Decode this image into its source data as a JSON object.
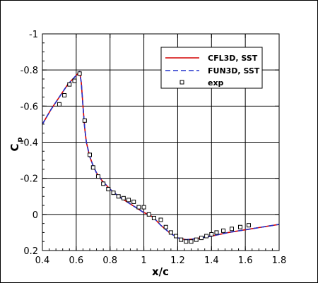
{
  "chart_data": {
    "type": "line",
    "xlabel": "x/c",
    "ylabel_main": "C",
    "ylabel_sub": "p",
    "xlim": [
      0.4,
      1.8
    ],
    "ylim": [
      0.2,
      -1
    ],
    "x_ticks": [
      "0.4",
      "0.6",
      "0.8",
      "1",
      "1.2",
      "1.4",
      "1.6",
      "1.8"
    ],
    "y_ticks": [
      "0.2",
      "0",
      "-0.2",
      "-0.4",
      "-0.6",
      "-0.8",
      "-1"
    ],
    "grid": true,
    "legend_position": "top-right",
    "series": [
      {
        "name": "CFL3D, SST",
        "style": "line",
        "color": "#d40000",
        "x": [
          0.4,
          0.45,
          0.5,
          0.55,
          0.6,
          0.62,
          0.63,
          0.64,
          0.65,
          0.66,
          0.68,
          0.7,
          0.72,
          0.75,
          0.8,
          0.85,
          0.9,
          0.95,
          1.0,
          1.03,
          1.06,
          1.1,
          1.15,
          1.2,
          1.25,
          1.3,
          1.4,
          1.5,
          1.6,
          1.7,
          1.8
        ],
        "y": [
          -0.5,
          -0.58,
          -0.65,
          -0.72,
          -0.77,
          -0.79,
          -0.73,
          -0.6,
          -0.48,
          -0.4,
          -0.32,
          -0.27,
          -0.23,
          -0.19,
          -0.14,
          -0.1,
          -0.07,
          -0.04,
          -0.01,
          0.0,
          0.02,
          0.06,
          0.1,
          0.13,
          0.14,
          0.135,
          0.12,
          0.1,
          0.085,
          0.07,
          0.055
        ]
      },
      {
        "name": "FUN3D, SST",
        "style": "dashed",
        "color": "#2233cc",
        "x": [
          0.4,
          0.45,
          0.5,
          0.55,
          0.6,
          0.62,
          0.63,
          0.64,
          0.65,
          0.66,
          0.68,
          0.7,
          0.72,
          0.75,
          0.8,
          0.85,
          0.9,
          0.95,
          1.0,
          1.03,
          1.06,
          1.1,
          1.15,
          1.2,
          1.25,
          1.3,
          1.4,
          1.5,
          1.6,
          1.7,
          1.8
        ],
        "y": [
          -0.5,
          -0.58,
          -0.65,
          -0.72,
          -0.77,
          -0.79,
          -0.73,
          -0.6,
          -0.48,
          -0.4,
          -0.32,
          -0.27,
          -0.23,
          -0.19,
          -0.14,
          -0.1,
          -0.07,
          -0.04,
          -0.01,
          0.0,
          0.02,
          0.06,
          0.1,
          0.13,
          0.14,
          0.135,
          0.12,
          0.1,
          0.085,
          0.07,
          0.055
        ]
      },
      {
        "name": "exp",
        "style": "marker",
        "color": "#000000",
        "x": [
          0.5,
          0.53,
          0.56,
          0.59,
          0.62,
          0.65,
          0.68,
          0.7,
          0.73,
          0.76,
          0.79,
          0.82,
          0.85,
          0.88,
          0.91,
          0.94,
          0.97,
          1.0,
          1.03,
          1.06,
          1.1,
          1.13,
          1.16,
          1.19,
          1.22,
          1.25,
          1.28,
          1.31,
          1.34,
          1.37,
          1.4,
          1.43,
          1.47,
          1.52,
          1.57,
          1.62
        ],
        "y": [
          -0.61,
          -0.66,
          -0.72,
          -0.74,
          -0.78,
          -0.52,
          -0.33,
          -0.26,
          -0.21,
          -0.17,
          -0.14,
          -0.12,
          -0.1,
          -0.09,
          -0.08,
          -0.07,
          -0.04,
          -0.04,
          0.0,
          0.02,
          0.03,
          0.07,
          0.1,
          0.12,
          0.14,
          0.15,
          0.15,
          0.14,
          0.13,
          0.12,
          0.11,
          0.1,
          0.09,
          0.08,
          0.07,
          0.06
        ]
      }
    ]
  }
}
